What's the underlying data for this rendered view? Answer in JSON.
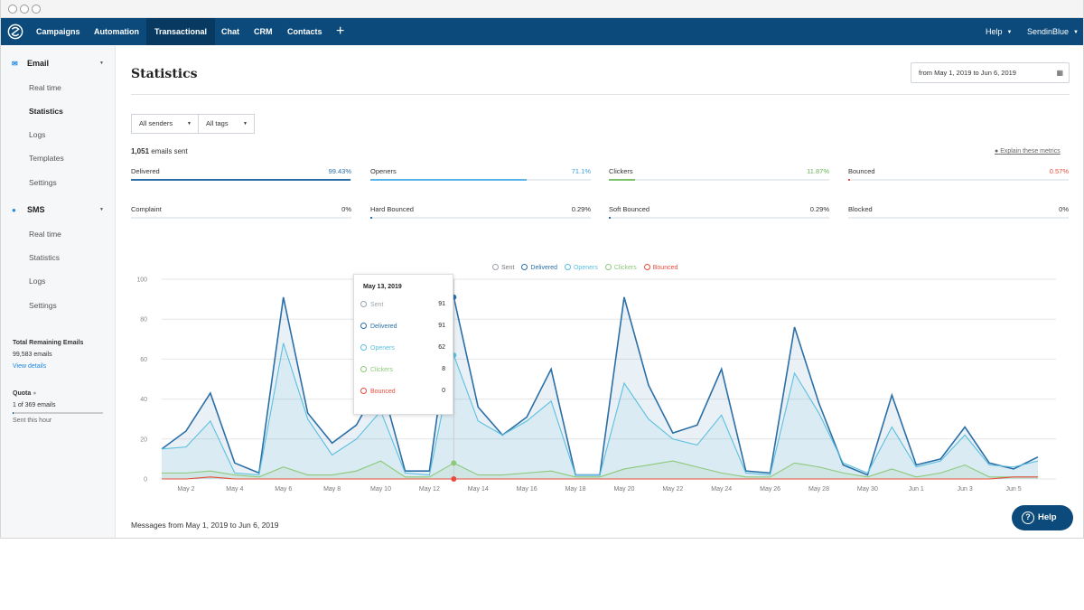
{
  "nav": {
    "items": [
      "Campaigns",
      "Automation",
      "Transactional",
      "Chat",
      "CRM",
      "Contacts"
    ],
    "active": "Transactional",
    "add_label": "+",
    "help": "Help",
    "account": "SendinBlue"
  },
  "sidebar": {
    "email_section": "Email",
    "email_items": [
      "Real time",
      "Statistics",
      "Logs",
      "Templates",
      "Settings"
    ],
    "sms_section": "SMS",
    "sms_items": [
      "Real time",
      "Statistics",
      "Logs",
      "Settings"
    ],
    "remaining_title": "Total Remaining Emails",
    "remaining_value": "99,583 emails",
    "view_details": "View details",
    "quota_title": "Quota",
    "quota_value": "1 of 369 emails",
    "quota_fraction": 0.003,
    "quota_note": "Sent this hour"
  },
  "main": {
    "title": "Statistics",
    "date_range": "from May 1, 2019 to Jun 6, 2019",
    "filter_senders": "All senders",
    "filter_tags": "All tags",
    "emails_sent_count": "1,051",
    "emails_sent_label": "emails sent",
    "explain": "Explain these metrics",
    "messages_footer": "Messages from May 1, 2019 to Jun 6, 2019"
  },
  "metrics": [
    {
      "label": "Delivered",
      "value": "99.43%",
      "fraction": 0.9943,
      "color": "#2b6fa6",
      "value_color": "#2b6fa6"
    },
    {
      "label": "Openers",
      "value": "71.1%",
      "fraction": 0.711,
      "color": "#5bb4e8",
      "value_color": "#3aa0d8"
    },
    {
      "label": "Clickers",
      "value": "11.87%",
      "fraction": 0.1187,
      "color": "#7cc26b",
      "value_color": "#6cb35a"
    },
    {
      "label": "Bounced",
      "value": "0.57%",
      "fraction": 0.0057,
      "color": "#e74c3c",
      "value_color": "#e74c3c"
    },
    {
      "label": "Complaint",
      "value": "0%",
      "fraction": 0,
      "color": "#2b6fa6",
      "value_color": "#333"
    },
    {
      "label": "Hard Bounced",
      "value": "0.29%",
      "fraction": 0.0029,
      "color": "#2b6fa6",
      "value_color": "#333"
    },
    {
      "label": "Soft Bounced",
      "value": "0.29%",
      "fraction": 0.0029,
      "color": "#2b6fa6",
      "value_color": "#333"
    },
    {
      "label": "Blocked",
      "value": "0%",
      "fraction": 0,
      "color": "#2b6fa6",
      "value_color": "#333"
    }
  ],
  "chart_data": {
    "type": "area",
    "x": [
      "May 1",
      "May 2",
      "May 3",
      "May 4",
      "May 5",
      "May 6",
      "May 7",
      "May 8",
      "May 9",
      "May 10",
      "May 11",
      "May 12",
      "May 13",
      "May 14",
      "May 15",
      "May 16",
      "May 17",
      "May 18",
      "May 19",
      "May 20",
      "May 21",
      "May 22",
      "May 23",
      "May 24",
      "May 25",
      "May 26",
      "May 27",
      "May 28",
      "May 29",
      "May 30",
      "May 31",
      "Jun 1",
      "Jun 2",
      "Jun 3",
      "Jun 4",
      "Jun 5",
      "Jun 6"
    ],
    "tick_labels": [
      "May 2",
      "May 4",
      "May 6",
      "May 8",
      "May 10",
      "May 12",
      "May 14",
      "May 16",
      "May 18",
      "May 20",
      "May 22",
      "May 24",
      "May 26",
      "May 28",
      "May 30",
      "Jun 1",
      "Jun 3",
      "Jun 5"
    ],
    "ylim": [
      0,
      100
    ],
    "yticks": [
      0,
      20,
      40,
      60,
      80,
      100
    ],
    "series": [
      {
        "name": "Sent",
        "color": "#9aa5ae",
        "values": [
          15,
          24,
          43,
          8,
          3,
          91,
          33,
          18,
          27,
          49,
          4,
          4,
          91,
          36,
          22,
          31,
          55,
          2,
          2,
          91,
          47,
          23,
          27,
          55,
          4,
          3,
          76,
          38,
          7,
          2,
          42,
          7,
          10,
          26,
          8,
          5,
          11
        ]
      },
      {
        "name": "Delivered",
        "color": "#2b6fa6",
        "values": [
          15,
          24,
          43,
          8,
          3,
          91,
          33,
          18,
          27,
          49,
          4,
          4,
          91,
          36,
          22,
          31,
          55,
          2,
          2,
          91,
          47,
          23,
          27,
          55,
          4,
          3,
          76,
          38,
          7,
          2,
          42,
          7,
          10,
          26,
          8,
          5,
          11
        ]
      },
      {
        "name": "Openers",
        "color": "#5bc0de",
        "values": [
          15,
          16,
          29,
          3,
          2,
          68,
          30,
          12,
          20,
          34,
          3,
          2,
          62,
          29,
          22,
          29,
          39,
          2,
          2,
          48,
          30,
          20,
          17,
          32,
          3,
          2,
          53,
          33,
          8,
          3,
          26,
          6,
          9,
          22,
          7,
          6,
          9
        ]
      },
      {
        "name": "Clickers",
        "color": "#8cc97a",
        "values": [
          3,
          3,
          4,
          2,
          1,
          6,
          2,
          2,
          4,
          9,
          1,
          1,
          8,
          2,
          2,
          3,
          4,
          1,
          1,
          5,
          7,
          9,
          6,
          3,
          1,
          1,
          8,
          6,
          3,
          1,
          5,
          1,
          3,
          7,
          1,
          1,
          1
        ]
      },
      {
        "name": "Bounced",
        "color": "#e74c3c",
        "values": [
          0,
          0,
          1,
          0,
          0,
          0,
          0,
          0,
          0,
          0,
          0,
          0,
          0,
          0,
          0,
          0,
          0,
          0,
          0,
          0,
          0,
          0,
          0,
          0,
          0,
          0,
          0,
          0,
          0,
          0,
          0,
          0,
          0,
          0,
          0,
          1,
          1
        ]
      }
    ],
    "legend_position": "top-center",
    "grid": true,
    "tooltip": {
      "date": "May 13, 2019",
      "rows": [
        {
          "name": "Sent",
          "value": "91",
          "color": "#9aa5ae"
        },
        {
          "name": "Delivered",
          "value": "91",
          "color": "#2b6fa6"
        },
        {
          "name": "Openers",
          "value": "62",
          "color": "#5bc0de"
        },
        {
          "name": "Clickers",
          "value": "8",
          "color": "#8cc97a"
        },
        {
          "name": "Bounced",
          "value": "0",
          "color": "#e74c3c"
        }
      ]
    }
  },
  "help_button": "Help"
}
